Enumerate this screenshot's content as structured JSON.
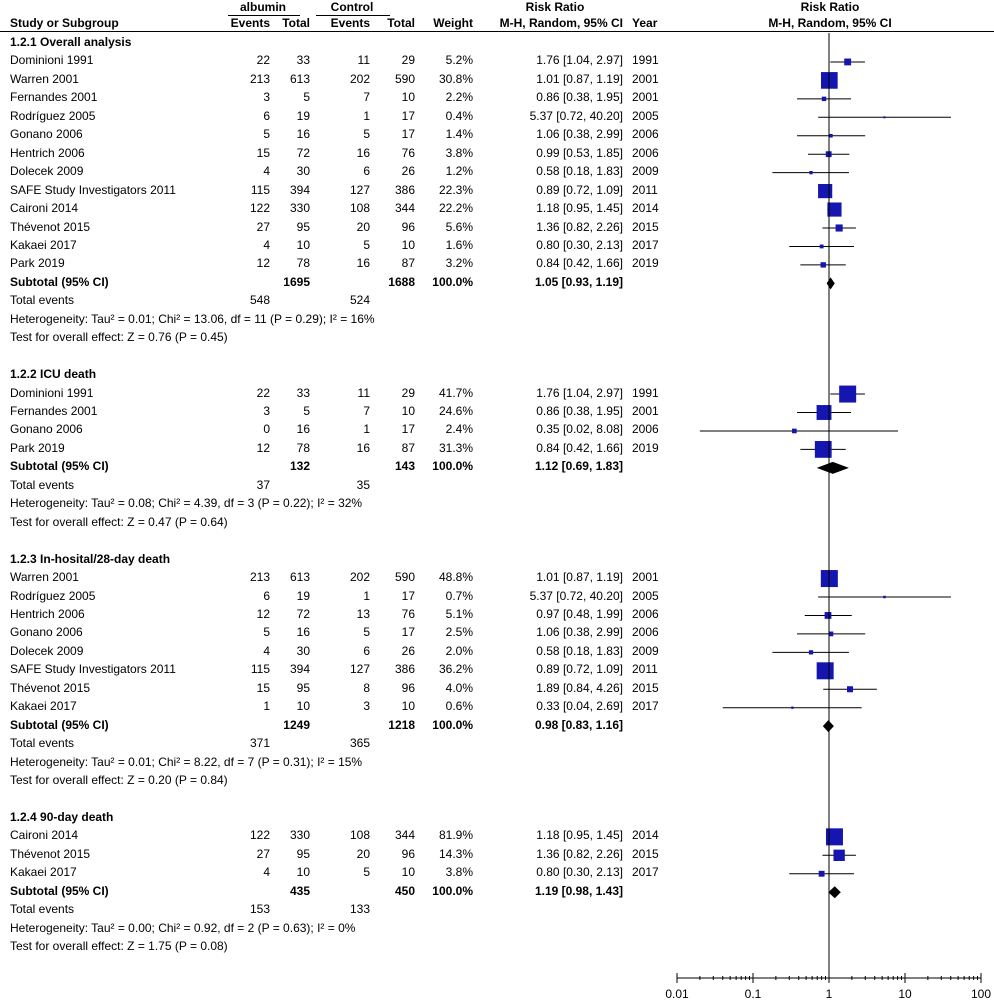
{
  "columns": {
    "study": "Study or Subgroup",
    "group1": "albumin",
    "group2": "Control",
    "events": "Events",
    "total": "Total",
    "weight": "Weight",
    "rr_title": "Risk Ratio",
    "rr_method": "M-H, Random, 95% CI",
    "year": "Year",
    "plot_title": "Risk Ratio",
    "plot_method": "M-H, Random, 95% CI"
  },
  "colors": {
    "marker": "#1515b0",
    "line": "#000000",
    "diamond": "#000000"
  },
  "chart_data": {
    "type": "forest",
    "scale": "log",
    "xlim": [
      0.01,
      100
    ],
    "ticks": [
      0.01,
      0.1,
      1,
      10,
      100
    ],
    "tick_labels": [
      "0.01",
      "0.1",
      "1",
      "10",
      "100"
    ],
    "null_line": 1,
    "subgroups": [
      {
        "title": "1.2.1 Overall analysis",
        "studies": [
          {
            "name": "Dominioni 1991",
            "e1": "22",
            "t1": "33",
            "e2": "11",
            "t2": "29",
            "weight": "5.2%",
            "ci_text": "1.76 [1.04, 2.97]",
            "year": "1991",
            "rr": 1.76,
            "lo": 1.04,
            "hi": 2.97
          },
          {
            "name": "Warren 2001",
            "e1": "213",
            "t1": "613",
            "e2": "202",
            "t2": "590",
            "weight": "30.8%",
            "ci_text": "1.01 [0.87, 1.19]",
            "year": "2001",
            "rr": 1.01,
            "lo": 0.87,
            "hi": 1.19
          },
          {
            "name": "Fernandes 2001",
            "e1": "3",
            "t1": "5",
            "e2": "7",
            "t2": "10",
            "weight": "2.2%",
            "ci_text": "0.86 [0.38, 1.95]",
            "year": "2001",
            "rr": 0.86,
            "lo": 0.38,
            "hi": 1.95
          },
          {
            "name": "Rodríguez 2005",
            "e1": "6",
            "t1": "19",
            "e2": "1",
            "t2": "17",
            "weight": "0.4%",
            "ci_text": "5.37 [0.72, 40.20]",
            "year": "2005",
            "rr": 5.37,
            "lo": 0.72,
            "hi": 40.2
          },
          {
            "name": "Gonano 2006",
            "e1": "5",
            "t1": "16",
            "e2": "5",
            "t2": "17",
            "weight": "1.4%",
            "ci_text": "1.06 [0.38, 2.99]",
            "year": "2006",
            "rr": 1.06,
            "lo": 0.38,
            "hi": 2.99
          },
          {
            "name": "Hentrich 2006",
            "e1": "15",
            "t1": "72",
            "e2": "16",
            "t2": "76",
            "weight": "3.8%",
            "ci_text": "0.99 [0.53, 1.85]",
            "year": "2006",
            "rr": 0.99,
            "lo": 0.53,
            "hi": 1.85
          },
          {
            "name": "Dolecek 2009",
            "e1": "4",
            "t1": "30",
            "e2": "6",
            "t2": "26",
            "weight": "1.2%",
            "ci_text": "0.58 [0.18, 1.83]",
            "year": "2009",
            "rr": 0.58,
            "lo": 0.18,
            "hi": 1.83
          },
          {
            "name": "SAFE Study Investigators 2011",
            "e1": "115",
            "t1": "394",
            "e2": "127",
            "t2": "386",
            "weight": "22.3%",
            "ci_text": "0.89 [0.72, 1.09]",
            "year": "2011",
            "rr": 0.89,
            "lo": 0.72,
            "hi": 1.09
          },
          {
            "name": "Caironi 2014",
            "e1": "122",
            "t1": "330",
            "e2": "108",
            "t2": "344",
            "weight": "22.2%",
            "ci_text": "1.18 [0.95, 1.45]",
            "year": "2014",
            "rr": 1.18,
            "lo": 0.95,
            "hi": 1.45
          },
          {
            "name": "Thévenot 2015",
            "e1": "27",
            "t1": "95",
            "e2": "20",
            "t2": "96",
            "weight": "5.6%",
            "ci_text": "1.36 [0.82, 2.26]",
            "year": "2015",
            "rr": 1.36,
            "lo": 0.82,
            "hi": 2.26
          },
          {
            "name": "Kakaei 2017",
            "e1": "4",
            "t1": "10",
            "e2": "5",
            "t2": "10",
            "weight": "1.6%",
            "ci_text": "0.80 [0.30, 2.13]",
            "year": "2017",
            "rr": 0.8,
            "lo": 0.3,
            "hi": 2.13
          },
          {
            "name": "Park 2019",
            "e1": "12",
            "t1": "78",
            "e2": "16",
            "t2": "87",
            "weight": "3.2%",
            "ci_text": "0.84 [0.42, 1.66]",
            "year": "2019",
            "rr": 0.84,
            "lo": 0.42,
            "hi": 1.66
          }
        ],
        "subtotal": {
          "label": "Subtotal (95% CI)",
          "t1": "1695",
          "t2": "1688",
          "weight": "100.0%",
          "ci_text": "1.05 [0.93, 1.19]",
          "rr": 1.05,
          "lo": 0.93,
          "hi": 1.19
        },
        "total_events": {
          "label": "Total events",
          "e1": "548",
          "e2": "524"
        },
        "heterogeneity": "Heterogeneity: Tau² = 0.01; Chi² = 13.06, df = 11 (P = 0.29); I² = 16%",
        "overall_effect": "Test for overall effect: Z = 0.76 (P = 0.45)"
      },
      {
        "title": "1.2.2 ICU death",
        "studies": [
          {
            "name": "Dominioni 1991",
            "e1": "22",
            "t1": "33",
            "e2": "11",
            "t2": "29",
            "weight": "41.7%",
            "ci_text": "1.76 [1.04, 2.97]",
            "year": "1991",
            "rr": 1.76,
            "lo": 1.04,
            "hi": 2.97
          },
          {
            "name": "Fernandes 2001",
            "e1": "3",
            "t1": "5",
            "e2": "7",
            "t2": "10",
            "weight": "24.6%",
            "ci_text": "0.86 [0.38, 1.95]",
            "year": "2001",
            "rr": 0.86,
            "lo": 0.38,
            "hi": 1.95
          },
          {
            "name": "Gonano 2006",
            "e1": "0",
            "t1": "16",
            "e2": "1",
            "t2": "17",
            "weight": "2.4%",
            "ci_text": "0.35 [0.02, 8.08]",
            "year": "2006",
            "rr": 0.35,
            "lo": 0.02,
            "hi": 8.08
          },
          {
            "name": "Park 2019",
            "e1": "12",
            "t1": "78",
            "e2": "16",
            "t2": "87",
            "weight": "31.3%",
            "ci_text": "0.84 [0.42, 1.66]",
            "year": "2019",
            "rr": 0.84,
            "lo": 0.42,
            "hi": 1.66
          }
        ],
        "subtotal": {
          "label": "Subtotal (95% CI)",
          "t1": "132",
          "t2": "143",
          "weight": "100.0%",
          "ci_text": "1.12 [0.69, 1.83]",
          "rr": 1.12,
          "lo": 0.69,
          "hi": 1.83
        },
        "total_events": {
          "label": "Total events",
          "e1": "37",
          "e2": "35"
        },
        "heterogeneity": "Heterogeneity: Tau² = 0.08; Chi² = 4.39, df = 3 (P = 0.22); I² = 32%",
        "overall_effect": "Test for overall effect: Z = 0.47 (P = 0.64)"
      },
      {
        "title": "1.2.3 In-hosital/28-day death",
        "studies": [
          {
            "name": "Warren 2001",
            "e1": "213",
            "t1": "613",
            "e2": "202",
            "t2": "590",
            "weight": "48.8%",
            "ci_text": "1.01 [0.87, 1.19]",
            "year": "2001",
            "rr": 1.01,
            "lo": 0.87,
            "hi": 1.19
          },
          {
            "name": "Rodríguez 2005",
            "e1": "6",
            "t1": "19",
            "e2": "1",
            "t2": "17",
            "weight": "0.7%",
            "ci_text": "5.37 [0.72, 40.20]",
            "year": "2005",
            "rr": 5.37,
            "lo": 0.72,
            "hi": 40.2
          },
          {
            "name": "Hentrich 2006",
            "e1": "12",
            "t1": "72",
            "e2": "13",
            "t2": "76",
            "weight": "5.1%",
            "ci_text": "0.97 [0.48, 1.99]",
            "year": "2006",
            "rr": 0.97,
            "lo": 0.48,
            "hi": 1.99
          },
          {
            "name": "Gonano 2006",
            "e1": "5",
            "t1": "16",
            "e2": "5",
            "t2": "17",
            "weight": "2.5%",
            "ci_text": "1.06 [0.38, 2.99]",
            "year": "2006",
            "rr": 1.06,
            "lo": 0.38,
            "hi": 2.99
          },
          {
            "name": "Dolecek 2009",
            "e1": "4",
            "t1": "30",
            "e2": "6",
            "t2": "26",
            "weight": "2.0%",
            "ci_text": "0.58 [0.18, 1.83]",
            "year": "2009",
            "rr": 0.58,
            "lo": 0.18,
            "hi": 1.83
          },
          {
            "name": "SAFE Study Investigators 2011",
            "e1": "115",
            "t1": "394",
            "e2": "127",
            "t2": "386",
            "weight": "36.2%",
            "ci_text": "0.89 [0.72, 1.09]",
            "year": "2011",
            "rr": 0.89,
            "lo": 0.72,
            "hi": 1.09
          },
          {
            "name": "Thévenot 2015",
            "e1": "15",
            "t1": "95",
            "e2": "8",
            "t2": "96",
            "weight": "4.0%",
            "ci_text": "1.89 [0.84, 4.26]",
            "year": "2015",
            "rr": 1.89,
            "lo": 0.84,
            "hi": 4.26
          },
          {
            "name": "Kakaei 2017",
            "e1": "1",
            "t1": "10",
            "e2": "3",
            "t2": "10",
            "weight": "0.6%",
            "ci_text": "0.33 [0.04, 2.69]",
            "year": "2017",
            "rr": 0.33,
            "lo": 0.04,
            "hi": 2.69
          }
        ],
        "subtotal": {
          "label": "Subtotal (95% CI)",
          "t1": "1249",
          "t2": "1218",
          "weight": "100.0%",
          "ci_text": "0.98 [0.83, 1.16]",
          "rr": 0.98,
          "lo": 0.83,
          "hi": 1.16
        },
        "total_events": {
          "label": "Total events",
          "e1": "371",
          "e2": "365"
        },
        "heterogeneity": "Heterogeneity: Tau² = 0.01; Chi² = 8.22, df = 7 (P = 0.31); I² = 15%",
        "overall_effect": "Test for overall effect: Z = 0.20 (P = 0.84)"
      },
      {
        "title": "1.2.4 90-day death",
        "studies": [
          {
            "name": "Caironi 2014",
            "e1": "122",
            "t1": "330",
            "e2": "108",
            "t2": "344",
            "weight": "81.9%",
            "ci_text": "1.18 [0.95, 1.45]",
            "year": "2014",
            "rr": 1.18,
            "lo": 0.95,
            "hi": 1.45
          },
          {
            "name": "Thévenot 2015",
            "e1": "27",
            "t1": "95",
            "e2": "20",
            "t2": "96",
            "weight": "14.3%",
            "ci_text": "1.36 [0.82, 2.26]",
            "year": "2015",
            "rr": 1.36,
            "lo": 0.82,
            "hi": 2.26
          },
          {
            "name": "Kakaei 2017",
            "e1": "4",
            "t1": "10",
            "e2": "5",
            "t2": "10",
            "weight": "3.8%",
            "ci_text": "0.80 [0.30, 2.13]",
            "year": "2017",
            "rr": 0.8,
            "lo": 0.3,
            "hi": 2.13
          }
        ],
        "subtotal": {
          "label": "Subtotal (95% CI)",
          "t1": "435",
          "t2": "450",
          "weight": "100.0%",
          "ci_text": "1.19 [0.98, 1.43]",
          "rr": 1.19,
          "lo": 0.98,
          "hi": 1.43
        },
        "total_events": {
          "label": "Total events",
          "e1": "153",
          "e2": "133"
        },
        "heterogeneity": "Heterogeneity: Tau² = 0.00; Chi² = 0.92, df = 2 (P = 0.63); I² = 0%",
        "overall_effect": "Test for overall effect: Z = 1.75 (P = 0.08)"
      }
    ]
  }
}
